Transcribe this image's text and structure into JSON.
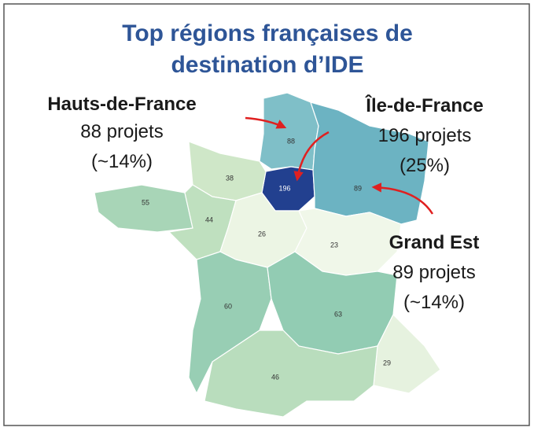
{
  "title": [
    "Top régions françaises de",
    "destination d’IDE"
  ],
  "regions": [
    {
      "value": 88,
      "color": "#7fbfc8"
    },
    {
      "value": 196,
      "color": "#22408f"
    },
    {
      "value": 89,
      "color": "#6cb3c2"
    },
    {
      "value": 38,
      "color": "#cfe7c8"
    },
    {
      "value": 55,
      "color": "#a8d5b7"
    },
    {
      "value": 44,
      "color": "#bfe0bf"
    },
    {
      "value": 26,
      "color": "#ecf5e4"
    },
    {
      "value": 23,
      "color": "#f0f7e9"
    },
    {
      "value": 60,
      "color": "#98ceb4"
    },
    {
      "value": 63,
      "color": "#92ccb3"
    },
    {
      "value": 29,
      "color": "#e6f2df"
    },
    {
      "value": 46,
      "color": "#b9ddbd"
    }
  ],
  "callouts": [
    {
      "name": "Hauts-de-France",
      "line1": "88 projets",
      "line2": "(~14%)"
    },
    {
      "name": "Île-de-France",
      "line1": "196 projets",
      "line2": "(25%)"
    },
    {
      "name": "Grand Est",
      "line1": "89 projets",
      "line2": "(~14%)"
    }
  ]
}
